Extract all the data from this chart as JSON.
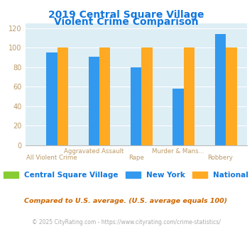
{
  "title_line1": "2019 Central Square Village",
  "title_line2": "Violent Crime Comparison",
  "categories": [
    "All Violent Crime",
    "Aggravated Assault",
    "Rape",
    "Murder & Mans...",
    "Robbery"
  ],
  "cat_row1": [
    "",
    "Aggravated Assault",
    "",
    "Murder & Mans...",
    ""
  ],
  "cat_row2": [
    "All Violent Crime",
    "",
    "Rape",
    "",
    "Robbery"
  ],
  "series": {
    "Central Square Village": [
      0,
      0,
      0,
      0,
      0
    ],
    "New York": [
      95,
      91,
      80,
      58,
      114
    ],
    "National": [
      100,
      100,
      100,
      100,
      100
    ]
  },
  "colors": {
    "Central Square Village": "#88cc33",
    "New York": "#3399ee",
    "National": "#ffaa22"
  },
  "ylim": [
    0,
    125
  ],
  "yticks": [
    0,
    20,
    40,
    60,
    80,
    100,
    120
  ],
  "bg_color": "#ddeef5",
  "title_color": "#1177dd",
  "xticklabel_color": "#bb9966",
  "yticklabel_color": "#bb9966",
  "grid_color": "#ffffff",
  "footnote1": "Compared to U.S. average. (U.S. average equals 100)",
  "footnote2": "© 2025 CityRating.com - https://www.cityrating.com/crime-statistics/",
  "footnote1_color": "#cc6600",
  "footnote2_color": "#aaaaaa",
  "legend_text_color": "#1177dd",
  "bar_width": 0.26
}
